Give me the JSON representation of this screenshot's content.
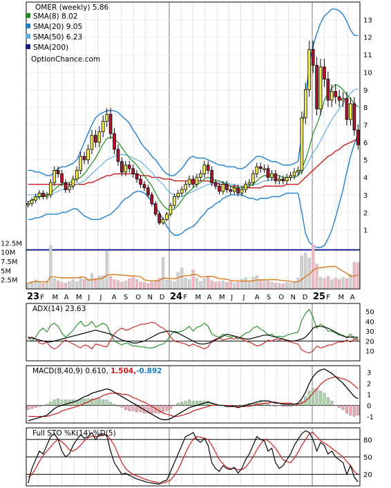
{
  "colors": {
    "up": "#f5ef52",
    "down": "#b3122e",
    "green": "#1d8a1d",
    "red": "#cc1a1a",
    "blue": "#1d7fd0",
    "light_blue": "#5fb0e6",
    "navy": "#1a1a8c",
    "orange": "#d97a1a",
    "pink": "#f2b7c0",
    "grey": "#d0d0d0",
    "yellow": "#e8e84a"
  },
  "chart_data": [
    {
      "type": "candlestick",
      "title": "OMER (weekly) 5.86",
      "ylim": [
        0,
        14
      ],
      "y_ticks": [
        "1",
        "2",
        "3",
        "4",
        "5",
        "6",
        "7",
        "8",
        "9",
        "10",
        "11",
        "12",
        "13"
      ],
      "x_tick_labels": [
        "23",
        "F",
        "M",
        "A",
        "M",
        "J",
        "J",
        "A",
        "S",
        "O",
        "N",
        "D",
        "24",
        "F",
        "M",
        "A",
        "M",
        "J",
        "J",
        "A",
        "S",
        "O",
        "N",
        "D",
        "25",
        "F",
        "M",
        "A"
      ],
      "bold_tick_labels": [
        "23",
        "24",
        "25"
      ],
      "watermark": "OptionChance.com",
      "legend": [
        {
          "label": "SMA(8) 8.02",
          "color": "#1d8a1d"
        },
        {
          "label": "SMA(20) 9.05",
          "color": "#1d7fd0"
        },
        {
          "label": "SMA(50) 6.23",
          "color": "#5fb0e6"
        },
        {
          "label": "SMA(200)",
          "color": "#1a1a8c"
        }
      ],
      "close": [
        2.5,
        2.7,
        2.9,
        3.1,
        2.9,
        3.0,
        3.7,
        4.4,
        4.2,
        3.7,
        3.3,
        3.5,
        3.9,
        4.4,
        5.2,
        5.0,
        5.6,
        6.4,
        6.0,
        6.6,
        7.2,
        7.6,
        6.5,
        5.6,
        4.9,
        4.3,
        4.7,
        4.5,
        4.2,
        3.9,
        3.6,
        3.4,
        3.0,
        2.5,
        1.9,
        1.4,
        1.6,
        1.9,
        2.4,
        2.9,
        3.1,
        3.3,
        3.6,
        3.9,
        3.6,
        4.0,
        4.2,
        4.7,
        4.4,
        3.7,
        3.5,
        3.2,
        3.6,
        3.3,
        3.2,
        3.4,
        3.1,
        3.3,
        3.6,
        3.7,
        4.2,
        4.6,
        4.5,
        4.5,
        4.0,
        4.2,
        3.8,
        3.9,
        3.8,
        4.0,
        4.1,
        4.3,
        4.4,
        7.4,
        9.0,
        11.3,
        10.4,
        7.9,
        10.3,
        9.6,
        8.4,
        8.9,
        8.6,
        8.4,
        8.5,
        7.3,
        8.2,
        6.7,
        5.86
      ],
      "sma8": [
        2.6,
        2.7,
        2.8,
        2.9,
        2.9,
        3.0,
        3.1,
        3.3,
        3.5,
        3.6,
        3.7,
        3.7,
        3.8,
        3.9,
        4.0,
        4.2,
        4.5,
        4.8,
        5.1,
        5.5,
        5.9,
        6.2,
        6.3,
        6.2,
        6.0,
        5.7,
        5.4,
        5.1,
        4.9,
        4.7,
        4.4,
        4.1,
        3.8,
        3.5,
        3.1,
        2.7,
        2.4,
        2.2,
        2.1,
        2.2,
        2.4,
        2.7,
        3.0,
        3.2,
        3.4,
        3.6,
        3.7,
        3.9,
        4.0,
        3.9,
        3.8,
        3.8,
        3.7,
        3.6,
        3.5,
        3.4,
        3.4,
        3.4,
        3.4,
        3.5,
        3.6,
        3.8,
        4.0,
        4.1,
        4.1,
        4.1,
        4.1,
        4.1,
        4.0,
        4.0,
        4.0,
        4.0,
        4.1,
        4.5,
        5.0,
        5.7,
        6.5,
        7.0,
        7.6,
        8.4,
        8.8,
        9.1,
        9.3,
        9.2,
        9.0,
        8.7,
        8.5,
        8.2,
        8.02
      ],
      "sma20": [
        3.0,
        3.0,
        3.0,
        3.0,
        3.0,
        3.0,
        3.0,
        3.1,
        3.2,
        3.3,
        3.3,
        3.4,
        3.5,
        3.6,
        3.7,
        3.8,
        4.0,
        4.2,
        4.4,
        4.6,
        4.8,
        5.0,
        5.1,
        5.2,
        5.3,
        5.3,
        5.3,
        5.2,
        5.1,
        5.0,
        4.9,
        4.7,
        4.5,
        4.3,
        4.0,
        3.8,
        3.6,
        3.3,
        3.1,
        3.0,
        2.9,
        2.9,
        3.0,
        3.1,
        3.2,
        3.3,
        3.4,
        3.5,
        3.6,
        3.6,
        3.7,
        3.7,
        3.7,
        3.7,
        3.6,
        3.6,
        3.5,
        3.5,
        3.5,
        3.5,
        3.6,
        3.6,
        3.7,
        3.8,
        3.8,
        3.9,
        3.9,
        3.9,
        3.9,
        4.0,
        4.0,
        4.0,
        4.1,
        4.3,
        4.6,
        5.0,
        5.4,
        5.7,
        6.1,
        6.5,
        6.9,
        7.3,
        7.6,
        7.9,
        8.2,
        8.5,
        8.8,
        9.0,
        9.05
      ],
      "sma50": [
        3.6,
        3.6,
        3.6,
        3.6,
        3.6,
        3.6,
        3.6,
        3.6,
        3.6,
        3.6,
        3.6,
        3.6,
        3.6,
        3.6,
        3.6,
        3.6,
        3.7,
        3.7,
        3.8,
        3.9,
        4.0,
        4.1,
        4.1,
        4.2,
        4.2,
        4.2,
        4.2,
        4.2,
        4.2,
        4.2,
        4.1,
        4.1,
        4.1,
        4.0,
        4.0,
        4.0,
        3.9,
        3.9,
        3.9,
        3.8,
        3.8,
        3.8,
        3.8,
        3.8,
        3.8,
        3.8,
        3.8,
        3.8,
        3.8,
        3.7,
        3.7,
        3.6,
        3.6,
        3.6,
        3.5,
        3.5,
        3.5,
        3.5,
        3.4,
        3.4,
        3.4,
        3.4,
        3.4,
        3.5,
        3.5,
        3.5,
        3.5,
        3.5,
        3.5,
        3.6,
        3.6,
        3.6,
        3.6,
        3.8,
        4.0,
        4.2,
        4.4,
        4.6,
        4.8,
        5.0,
        5.2,
        5.3,
        5.5,
        5.6,
        5.8,
        5.9,
        6.0,
        6.1,
        6.23
      ],
      "bb_upper": [
        4.4,
        4.4,
        4.3,
        4.3,
        4.2,
        4.1,
        4.1,
        4.3,
        4.5,
        4.6,
        4.6,
        4.7,
        4.8,
        5.0,
        5.5,
        6.0,
        6.5,
        7.0,
        7.4,
        7.6,
        7.7,
        7.8,
        7.8,
        7.8,
        7.7,
        7.5,
        7.3,
        7.1,
        6.7,
        6.4,
        6.0,
        5.7,
        5.5,
        5.2,
        5.0,
        4.7,
        4.4,
        4.2,
        4.1,
        4.1,
        4.3,
        4.5,
        4.8,
        5.1,
        5.2,
        5.1,
        5.1,
        5.1,
        5.0,
        4.9,
        4.8,
        4.7,
        4.7,
        4.6,
        4.6,
        4.6,
        4.5,
        4.5,
        4.6,
        4.8,
        5.0,
        5.2,
        5.2,
        5.1,
        5.0,
        4.9,
        4.9,
        4.8,
        4.7,
        4.7,
        4.7,
        4.8,
        4.9,
        6.5,
        8.5,
        10.5,
        11.5,
        12.2,
        12.8,
        13.2,
        13.4,
        13.6,
        13.6,
        13.5,
        13.3,
        12.9,
        12.4,
        12.1,
        12.1
      ],
      "bb_lower": [
        1.6,
        1.6,
        1.7,
        1.7,
        1.8,
        1.9,
        1.9,
        1.9,
        1.9,
        2.0,
        2.0,
        2.1,
        2.2,
        2.2,
        2.0,
        1.8,
        1.7,
        1.6,
        1.6,
        1.6,
        1.7,
        1.8,
        1.9,
        2.1,
        2.3,
        2.6,
        2.8,
        2.9,
        3.1,
        3.2,
        3.2,
        3.1,
        2.9,
        2.6,
        2.3,
        2.0,
        1.6,
        1.2,
        0.9,
        0.7,
        0.7,
        0.8,
        1.0,
        1.1,
        1.2,
        1.4,
        1.7,
        1.9,
        2.2,
        2.3,
        2.5,
        2.6,
        2.8,
        2.9,
        3.0,
        3.0,
        3.0,
        3.0,
        2.9,
        2.8,
        2.8,
        2.7,
        2.8,
        2.8,
        2.8,
        2.9,
        2.9,
        2.9,
        3.0,
        3.1,
        3.1,
        3.1,
        3.1,
        2.0,
        0.8,
        0.3,
        0.1,
        0.0,
        0.0,
        0.1,
        0.5,
        1.0,
        1.7,
        2.5,
        3.3,
        4.3,
        5.2,
        5.9,
        6.4
      ],
      "volume_scale_labels": [
        "2.5M",
        "5M",
        "7.5M",
        "10M",
        "12.5M"
      ],
      "volume_ylim": [
        0,
        15
      ],
      "volume_m": [
        1.6,
        2.0,
        2.5,
        1.8,
        1.5,
        2.0,
        11.8,
        2.8,
        2.2,
        1.8,
        1.6,
        2.0,
        2.5,
        2.0,
        3.2,
        2.6,
        2.8,
        4.2,
        3.0,
        3.5,
        3.6,
        10.2,
        3.4,
        2.6,
        2.3,
        1.8,
        2.2,
        2.8,
        3.2,
        2.6,
        1.9,
        1.8,
        1.5,
        1.9,
        2.3,
        2.9,
        8.6,
        2.5,
        2.2,
        2.0,
        4.5,
        5.7,
        3.0,
        2.5,
        5.2,
        3.0,
        2.0,
        2.8,
        3.3,
        2.2,
        1.8,
        2.0,
        2.2,
        1.8,
        2.0,
        1.6,
        1.9,
        2.6,
        3.0,
        2.2,
        3.2,
        3.6,
        2.6,
        2.3,
        2.2,
        1.8,
        1.6,
        1.5,
        1.4,
        1.7,
        1.6,
        2.0,
        3.0,
        9.0,
        9.8,
        8.4,
        12.0,
        6.8,
        3.2,
        2.8,
        3.4,
        2.6,
        3.0,
        2.6,
        3.2,
        2.8,
        4.0,
        7.2,
        7.2
      ],
      "sma200_level": 10.6,
      "volume_avg_level": 2.2
    },
    {
      "type": "line",
      "title": "ADX(14) 23.63",
      "ylim": [
        0,
        58
      ],
      "y_ticks": [
        "10",
        "20",
        "30",
        "40",
        "50"
      ],
      "adx": [
        24,
        23,
        22,
        21,
        20,
        19,
        19,
        20,
        21,
        22,
        23,
        24,
        25,
        26,
        27,
        28,
        29,
        30,
        31,
        30,
        29,
        28,
        27,
        25,
        23,
        21,
        20,
        19,
        18,
        18,
        19,
        20,
        22,
        24,
        26,
        28,
        29,
        30,
        30,
        29,
        28,
        26,
        24,
        22,
        20,
        18,
        17,
        17,
        18,
        19,
        21,
        23,
        25,
        27,
        26,
        25,
        24,
        23,
        22,
        22,
        23,
        24,
        25,
        26,
        26,
        25,
        24,
        23,
        22,
        21,
        20,
        20,
        21,
        22,
        24,
        28,
        33,
        35,
        35,
        34,
        33,
        31,
        29,
        27,
        25,
        24,
        24,
        24,
        23.63
      ],
      "pdi": [
        24,
        20,
        24,
        30,
        33,
        29,
        36,
        38,
        35,
        28,
        24,
        27,
        31,
        36,
        40,
        35,
        36,
        40,
        34,
        36,
        38,
        36,
        27,
        20,
        18,
        16,
        18,
        17,
        15,
        15,
        14,
        14,
        13,
        13,
        14,
        16,
        17,
        20,
        26,
        30,
        29,
        30,
        32,
        35,
        30,
        34,
        35,
        38,
        35,
        27,
        25,
        24,
        27,
        25,
        24,
        25,
        22,
        25,
        28,
        29,
        33,
        35,
        32,
        30,
        26,
        27,
        24,
        25,
        24,
        26,
        27,
        28,
        29,
        41,
        48,
        52,
        44,
        33,
        37,
        35,
        30,
        30,
        28,
        26,
        26,
        23,
        27,
        22,
        23
      ],
      "mdi": [
        22,
        24,
        22,
        18,
        17,
        19,
        14,
        12,
        14,
        18,
        21,
        19,
        17,
        15,
        13,
        16,
        15,
        12,
        17,
        16,
        15,
        14,
        21,
        27,
        31,
        33,
        31,
        32,
        34,
        35,
        37,
        37,
        38,
        39,
        38,
        35,
        33,
        30,
        24,
        20,
        19,
        18,
        17,
        15,
        17,
        15,
        14,
        12,
        14,
        20,
        22,
        23,
        21,
        22,
        23,
        22,
        24,
        22,
        20,
        19,
        17,
        15,
        16,
        18,
        21,
        20,
        22,
        21,
        22,
        20,
        19,
        18,
        17,
        11,
        9,
        8,
        10,
        15,
        13,
        14,
        16,
        16,
        18,
        19,
        19,
        21,
        19,
        22,
        21
      ]
    },
    {
      "type": "line",
      "title": "MACD(8,40,9) 0.610,",
      "legend": [
        {
          "label": "1.504,",
          "color": "#cc1a1a"
        },
        {
          "label": "-0.892",
          "color": "#1d7fd0"
        }
      ],
      "ylim": [
        -1.6,
        3.6
      ],
      "y_ticks": [
        "-1",
        "0",
        "1",
        "2",
        "3"
      ],
      "macd": [
        -1.4,
        -1.3,
        -1.2,
        -1.1,
        -1.0,
        -0.9,
        -0.6,
        -0.3,
        -0.1,
        0.0,
        0.1,
        0.2,
        0.3,
        0.4,
        0.6,
        0.8,
        0.9,
        1.1,
        1.2,
        1.3,
        1.4,
        1.5,
        1.4,
        1.2,
        1.0,
        0.8,
        0.6,
        0.4,
        0.2,
        0.0,
        -0.2,
        -0.4,
        -0.6,
        -0.8,
        -1.0,
        -1.2,
        -1.3,
        -1.3,
        -1.2,
        -1.0,
        -0.8,
        -0.6,
        -0.4,
        -0.2,
        -0.1,
        0.0,
        0.1,
        0.2,
        0.3,
        0.2,
        0.1,
        0.0,
        0.0,
        -0.1,
        -0.1,
        -0.1,
        -0.2,
        -0.1,
        0.0,
        0.1,
        0.2,
        0.3,
        0.4,
        0.4,
        0.4,
        0.3,
        0.2,
        0.2,
        0.1,
        0.1,
        0.1,
        0.1,
        0.2,
        0.6,
        1.2,
        2.0,
        2.6,
        3.0,
        3.2,
        3.3,
        3.1,
        2.9,
        2.6,
        2.3,
        2.0,
        1.6,
        1.2,
        0.8,
        0.61
      ],
      "signal": [
        -1.0,
        -1.0,
        -1.0,
        -1.0,
        -1.0,
        -1.0,
        -0.9,
        -0.8,
        -0.7,
        -0.5,
        -0.4,
        -0.3,
        -0.2,
        -0.1,
        0.0,
        0.2,
        0.3,
        0.5,
        0.6,
        0.7,
        0.9,
        1.0,
        1.1,
        1.1,
        1.1,
        1.0,
        1.0,
        0.9,
        0.7,
        0.6,
        0.4,
        0.3,
        0.1,
        -0.1,
        -0.3,
        -0.5,
        -0.7,
        -0.8,
        -0.9,
        -1.0,
        -1.0,
        -0.9,
        -0.8,
        -0.7,
        -0.5,
        -0.4,
        -0.3,
        -0.2,
        -0.1,
        0.0,
        0.0,
        0.0,
        0.0,
        0.0,
        0.0,
        -0.1,
        -0.1,
        -0.1,
        -0.1,
        -0.1,
        0.0,
        0.1,
        0.1,
        0.2,
        0.2,
        0.3,
        0.3,
        0.2,
        0.2,
        0.2,
        0.2,
        0.1,
        0.1,
        0.2,
        0.4,
        0.7,
        1.1,
        1.5,
        1.9,
        2.2,
        2.4,
        2.5,
        2.6,
        2.5,
        2.4,
        2.3,
        2.1,
        1.8,
        1.504
      ],
      "histogram": [
        -0.4,
        -0.3,
        -0.2,
        -0.1,
        0.0,
        0.1,
        0.3,
        0.5,
        0.6,
        0.5,
        0.5,
        0.5,
        0.5,
        0.5,
        0.6,
        0.6,
        0.6,
        0.6,
        0.6,
        0.6,
        0.5,
        0.5,
        0.3,
        0.1,
        -0.1,
        -0.2,
        -0.4,
        -0.5,
        -0.5,
        -0.6,
        -0.6,
        -0.7,
        -0.7,
        -0.7,
        -0.7,
        -0.7,
        -0.6,
        -0.5,
        -0.3,
        0.0,
        0.2,
        0.3,
        0.4,
        0.5,
        0.4,
        0.4,
        0.4,
        0.4,
        0.4,
        0.2,
        0.1,
        0.0,
        0.0,
        -0.1,
        -0.1,
        0.0,
        -0.1,
        0.0,
        0.1,
        0.2,
        0.2,
        0.2,
        0.3,
        0.2,
        0.2,
        0.0,
        -0.1,
        0.0,
        -0.1,
        -0.1,
        -0.1,
        0.0,
        0.1,
        0.4,
        0.8,
        1.3,
        1.5,
        1.5,
        1.3,
        1.1,
        0.7,
        0.4,
        0.0,
        -0.2,
        -0.4,
        -0.7,
        -0.9,
        -1.0,
        -0.892
      ]
    },
    {
      "type": "line",
      "title": "Full STO %K(14) %D(5)",
      "ylim": [
        0,
        100
      ],
      "y_ticks": [
        "20",
        "50",
        "80"
      ],
      "k": [
        5,
        30,
        45,
        60,
        55,
        70,
        85,
        90,
        80,
        60,
        50,
        55,
        70,
        80,
        88,
        82,
        85,
        92,
        80,
        88,
        90,
        86,
        60,
        40,
        30,
        20,
        22,
        18,
        15,
        12,
        10,
        8,
        6,
        5,
        4,
        3,
        8,
        10,
        25,
        40,
        55,
        70,
        85,
        88,
        92,
        80,
        75,
        82,
        70,
        40,
        30,
        25,
        35,
        30,
        28,
        32,
        22,
        30,
        45,
        55,
        70,
        85,
        80,
        78,
        60,
        65,
        40,
        30,
        35,
        45,
        55,
        70,
        80,
        90,
        95,
        92,
        80,
        60,
        75,
        70,
        55,
        60,
        50,
        45,
        40,
        20,
        35,
        15,
        7
      ],
      "d": [
        15,
        20,
        30,
        42,
        52,
        60,
        67,
        75,
        80,
        76,
        70,
        62,
        60,
        64,
        70,
        78,
        83,
        86,
        85,
        86,
        87,
        88,
        80,
        70,
        55,
        40,
        30,
        24,
        20,
        17,
        15,
        12,
        10,
        8,
        7,
        5,
        5,
        7,
        10,
        18,
        28,
        42,
        57,
        70,
        80,
        85,
        84,
        82,
        80,
        70,
        58,
        45,
        38,
        32,
        30,
        30,
        28,
        28,
        32,
        40,
        50,
        62,
        72,
        80,
        78,
        72,
        65,
        55,
        45,
        42,
        40,
        48,
        58,
        70,
        80,
        90,
        92,
        85,
        78,
        74,
        70,
        65,
        60,
        55,
        50,
        42,
        35,
        25,
        20
      ]
    }
  ]
}
